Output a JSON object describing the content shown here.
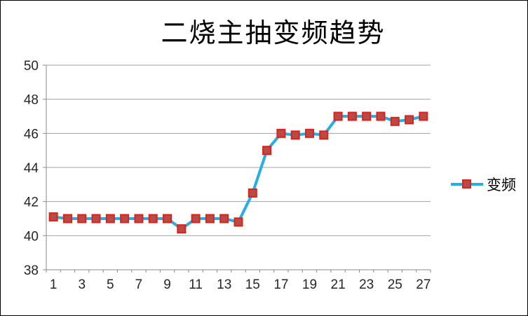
{
  "window": {
    "background": "#ffffff",
    "border_color": "#000000"
  },
  "chart_data": {
    "type": "line",
    "title": "二烧主抽变频趋势",
    "xlabel": "",
    "ylabel": "",
    "x": [
      1,
      2,
      3,
      4,
      5,
      6,
      7,
      8,
      9,
      10,
      11,
      12,
      13,
      14,
      15,
      16,
      17,
      18,
      19,
      20,
      21,
      22,
      23,
      24,
      25,
      26,
      27
    ],
    "x_tick_labels": [
      1,
      3,
      5,
      7,
      9,
      11,
      13,
      15,
      17,
      19,
      21,
      23,
      25,
      27
    ],
    "series": [
      {
        "name": "变频",
        "values": [
          41.1,
          41,
          41,
          41,
          41,
          41,
          41,
          41,
          41,
          40.4,
          41,
          41,
          41,
          40.8,
          42.5,
          45,
          46,
          45.9,
          46,
          45.9,
          47,
          47,
          47,
          47,
          46.7,
          46.8,
          47
        ]
      }
    ],
    "ylim": [
      38,
      50
    ],
    "ytick_step": 2,
    "grid": true,
    "legend_position": "right",
    "marker_shape": "square",
    "colors": {
      "line": "#27AEE4",
      "marker_fill": "#B94A45",
      "marker_border": "#DF201B",
      "gridline": "#A3A3A3",
      "axis": "#8A8A8A",
      "tick_label": "#262626",
      "title": "#000000"
    }
  }
}
